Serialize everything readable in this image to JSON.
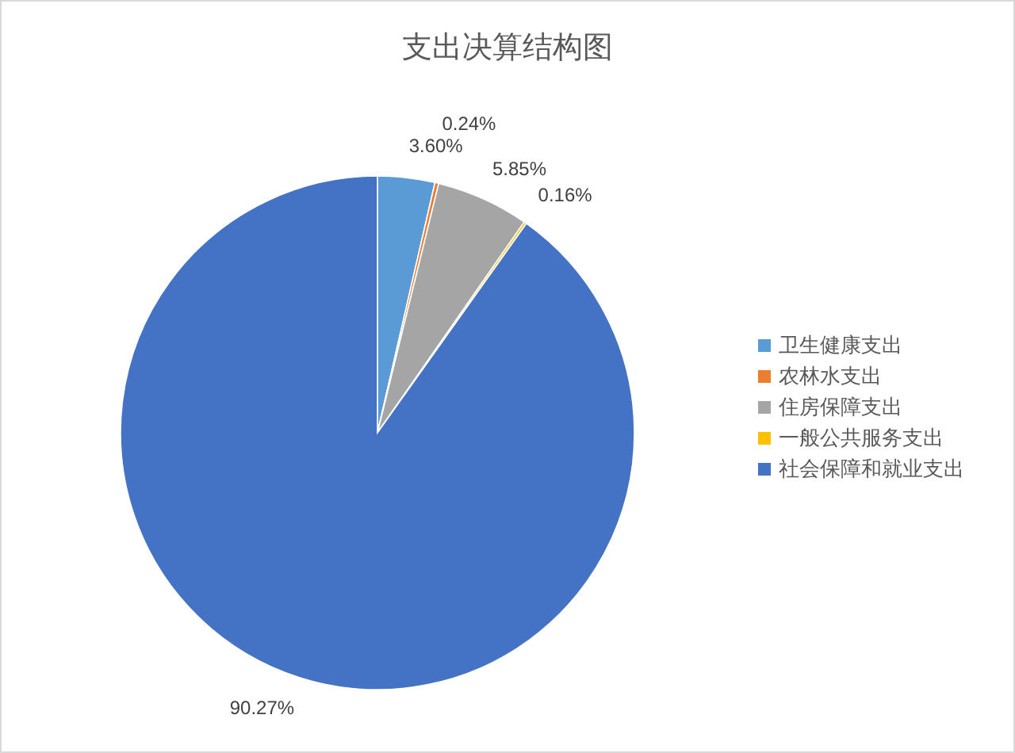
{
  "chart_data": {
    "type": "pie",
    "title": "支出决算结构图",
    "categories": [
      "卫生健康支出",
      "农林水支出",
      "住房保障支出",
      "一般公共服务支出",
      "社会保障和就业支出"
    ],
    "values": [
      3.6,
      0.24,
      5.85,
      0.16,
      90.27
    ],
    "colors": [
      "#5b9bd5",
      "#ed7d31",
      "#a5a5a5",
      "#ffc000",
      "#4472c4"
    ],
    "value_labels": [
      "3.60%",
      "0.24%",
      "5.85%",
      "0.16%",
      "90.27%"
    ],
    "legend": "right"
  }
}
